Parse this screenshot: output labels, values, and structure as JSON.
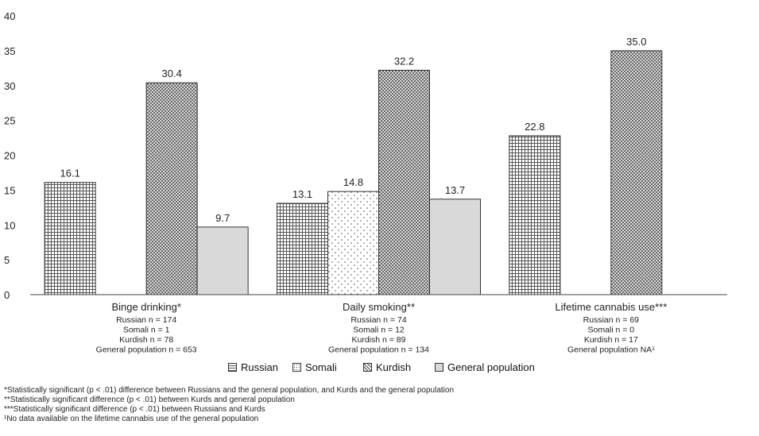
{
  "chart_data": {
    "type": "bar",
    "categories": [
      "Binge drinking*",
      "Daily smoking**",
      "Lifetime cannabis use***"
    ],
    "category_notes": [
      [
        "Russian n = 174",
        "Somali n = 1",
        "Kurdish n = 78",
        "General population n = 653"
      ],
      [
        "Russian n = 74",
        "Somali n = 12",
        "Kurdish n = 89",
        "General population n = 134"
      ],
      [
        "Russian n = 69",
        "Somali n = 0",
        "Kurdish n = 17",
        "General population NA¹"
      ]
    ],
    "series": [
      {
        "name": "Russian",
        "values": [
          16.1,
          13.1,
          22.8
        ],
        "pattern": "grid"
      },
      {
        "name": "Somali",
        "values": [
          null,
          14.8,
          null
        ],
        "pattern": "dots"
      },
      {
        "name": "Kurdish",
        "values": [
          30.4,
          32.2,
          35.0
        ],
        "pattern": "crosshatch"
      },
      {
        "name": "General population",
        "values": [
          9.7,
          13.7,
          null
        ],
        "pattern": "solid",
        "color": "#d9d9d9"
      }
    ],
    "ylim": [
      0,
      40
    ],
    "yticks": [
      0,
      5,
      10,
      15,
      20,
      25,
      30,
      35,
      40
    ],
    "grid": false,
    "legend": "bottom",
    "title": "",
    "xlabel": "",
    "ylabel": ""
  },
  "footnotes": [
    "*Statistically significant (p < .01) difference between Russians and the general population, and Kurds and the general population",
    "**Statistically significant difference (p < .01) between Kurds and general population",
    "***Statistically significant difference (p < .01) between Russians and Kurds",
    "¹No data available on the lifetime cannabis use of the general population"
  ]
}
